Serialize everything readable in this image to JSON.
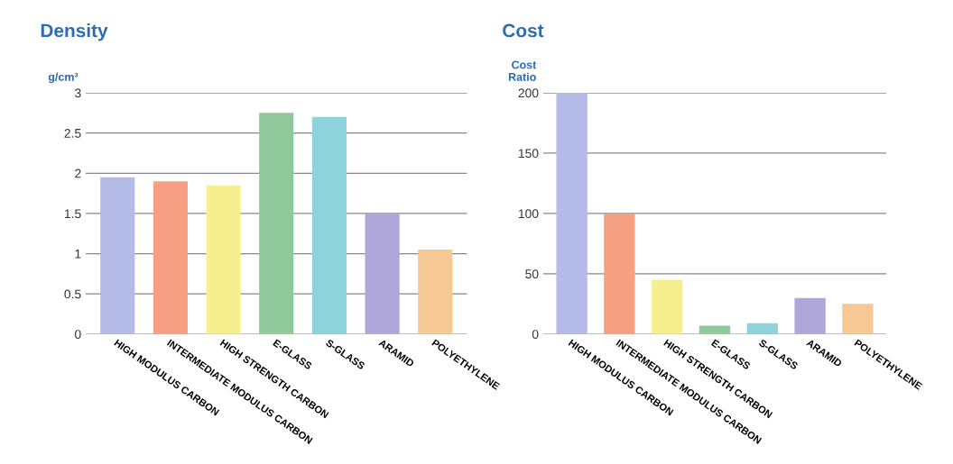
{
  "chart_data": [
    {
      "type": "bar",
      "title": "Density",
      "ylabel": "g/cm³",
      "categories": [
        "HIGH MODULUS CARBON",
        "INTERMEDIATE MODULUS CARBON",
        "HIGH STRENGTH CARBON",
        "E-GLASS",
        "S-GLASS",
        "ARAMID",
        "POLYETHYLENE"
      ],
      "values": [
        1.95,
        1.9,
        1.85,
        2.75,
        2.7,
        1.5,
        1.05
      ],
      "colors": [
        "#b3bbe6",
        "#f5a083",
        "#f6ef8e",
        "#8fc99b",
        "#8ed2dc",
        "#afa6da",
        "#f5c894"
      ],
      "ylim": [
        0,
        3
      ],
      "yticks": [
        0,
        0.5,
        1,
        1.5,
        2,
        2.5,
        3
      ],
      "grid": "y"
    },
    {
      "type": "bar",
      "title": "Cost",
      "ylabel": "Cost\nRatio",
      "categories": [
        "HIGH MODULUS CARBON",
        "INTERMEDIATE MODULUS CARBON",
        "HIGH STRENGTH CARBON",
        "E-GLASS",
        "S-GLASS",
        "ARAMID",
        "POLYETHYLENE"
      ],
      "values": [
        200,
        100,
        45,
        7,
        9,
        30,
        25
      ],
      "colors": [
        "#b3bbe6",
        "#f5a083",
        "#f6ef8e",
        "#8fc99b",
        "#8ed2dc",
        "#afa6da",
        "#f5c894"
      ],
      "ylim": [
        0,
        200
      ],
      "yticks": [
        0,
        50,
        100,
        150,
        200
      ],
      "grid": "y"
    }
  ]
}
